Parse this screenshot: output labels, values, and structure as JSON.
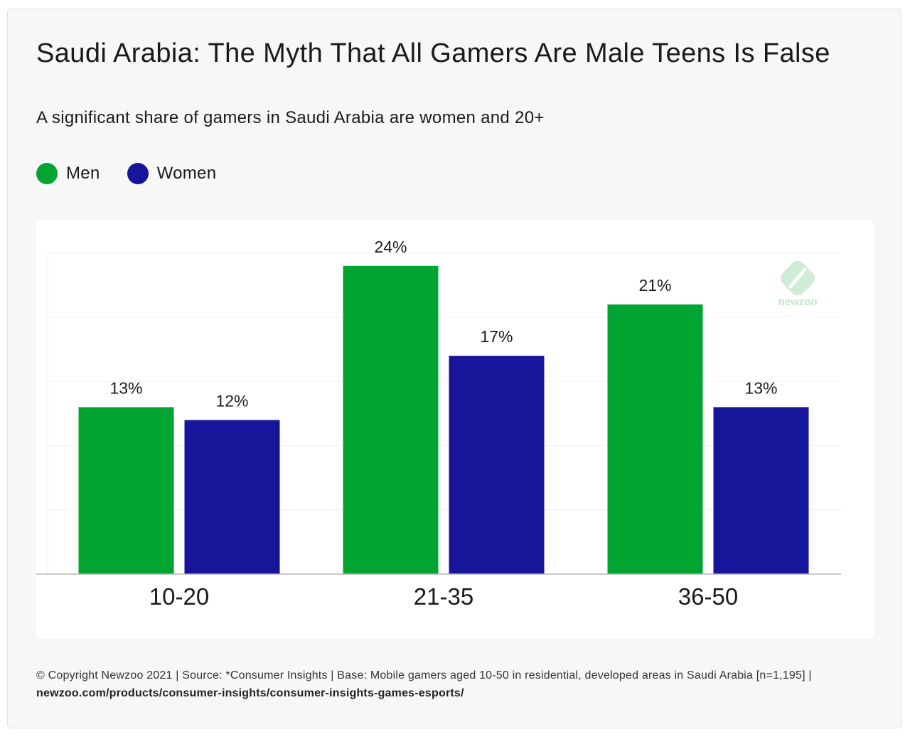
{
  "title": "Saudi Arabia: The Myth That All Gamers Are Male Teens Is False",
  "subtitle": "A significant share of gamers in Saudi Arabia are women and 20+",
  "colors": {
    "men": "#02a531",
    "women": "#171599",
    "watermark": "#bfe6c9"
  },
  "watermark": {
    "text": "newzoo"
  },
  "chart_data": {
    "type": "bar",
    "categories": [
      "10-20",
      "21-35",
      "36-50"
    ],
    "series": [
      {
        "name": "Men",
        "values": [
          13,
          24,
          21
        ],
        "labels": [
          "13%",
          "24%",
          "21%"
        ]
      },
      {
        "name": "Women",
        "values": [
          12,
          17,
          13
        ],
        "labels": [
          "12%",
          "17%",
          "13%"
        ]
      }
    ],
    "ylim": [
      0,
      25
    ],
    "grid": true,
    "legend": "top-left"
  },
  "footer": {
    "text": "© Copyright Newzoo 2021 | Source: *Consumer Insights | Base: Mobile gamers aged 10-50 in residential, developed areas in Saudi Arabia [n=1,195] | ",
    "link": "newzoo.com/products/consumer-insights/consumer-insights-games-esports/"
  }
}
